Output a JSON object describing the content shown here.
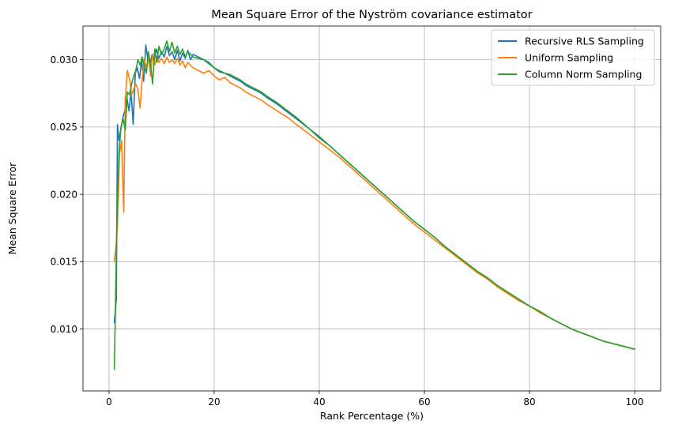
{
  "chart_data": {
    "type": "line",
    "title": "Mean Square Error of the Nyström covariance estimator",
    "xlabel": "Rank Percentage (%)",
    "ylabel": "Mean Square Error",
    "xlim": [
      -4.95,
      104.95
    ],
    "ylim": [
      0.0054,
      0.0325
    ],
    "xticks": [
      0,
      20,
      40,
      60,
      80,
      100
    ],
    "yticks": [
      0.01,
      0.015,
      0.02,
      0.025,
      0.03
    ],
    "xtick_labels": [
      "0",
      "20",
      "40",
      "60",
      "80",
      "100"
    ],
    "ytick_labels": [
      "0.010",
      "0.015",
      "0.020",
      "0.025",
      "0.030"
    ],
    "grid": true,
    "legend_position": "top-right",
    "series": [
      {
        "name": "Recursive RLS Sampling",
        "color": "#1f77b4",
        "points": [
          [
            1,
            0.0105
          ],
          [
            1.4,
            0.0122
          ],
          [
            1.6,
            0.0252
          ],
          [
            1.9,
            0.024
          ],
          [
            2.3,
            0.025
          ],
          [
            2.7,
            0.0258
          ],
          [
            3.0,
            0.0262
          ],
          [
            3.4,
            0.0272
          ],
          [
            3.8,
            0.0262
          ],
          [
            4.2,
            0.0276
          ],
          [
            4.6,
            0.0252
          ],
          [
            5.0,
            0.029
          ],
          [
            5.4,
            0.0294
          ],
          [
            5.8,
            0.0286
          ],
          [
            6.2,
            0.03
          ],
          [
            6.6,
            0.0284
          ],
          [
            7.0,
            0.0311
          ],
          [
            7.4,
            0.03
          ],
          [
            7.8,
            0.0296
          ],
          [
            8.2,
            0.0304
          ],
          [
            8.6,
            0.03
          ],
          [
            9.0,
            0.0308
          ],
          [
            9.5,
            0.0301
          ],
          [
            10,
            0.0306
          ],
          [
            10.5,
            0.0302
          ],
          [
            11,
            0.031
          ],
          [
            11.5,
            0.0303
          ],
          [
            12,
            0.0306
          ],
          [
            12.5,
            0.03
          ],
          [
            13,
            0.0307
          ],
          [
            13.5,
            0.0299
          ],
          [
            14,
            0.0305
          ],
          [
            14.5,
            0.0301
          ],
          [
            15,
            0.0307
          ],
          [
            15.5,
            0.03
          ],
          [
            16,
            0.0304
          ],
          [
            17,
            0.0302
          ],
          [
            18,
            0.03
          ],
          [
            19,
            0.0298
          ],
          [
            20,
            0.0294
          ],
          [
            21,
            0.0291
          ],
          [
            22,
            0.029
          ],
          [
            23,
            0.0288
          ],
          [
            24,
            0.0286
          ],
          [
            25,
            0.0284
          ],
          [
            26,
            0.0281
          ],
          [
            27,
            0.0279
          ],
          [
            28,
            0.0277
          ],
          [
            29,
            0.0275
          ],
          [
            30,
            0.0272
          ],
          [
            32,
            0.0267
          ],
          [
            34,
            0.0261
          ],
          [
            36,
            0.0255
          ],
          [
            38,
            0.0249
          ],
          [
            40,
            0.0242
          ],
          [
            42,
            0.0236
          ],
          [
            44,
            0.0229
          ],
          [
            46,
            0.0222
          ],
          [
            48,
            0.0215
          ],
          [
            50,
            0.0208
          ],
          [
            52,
            0.0201
          ],
          [
            54,
            0.0194
          ],
          [
            56,
            0.0187
          ],
          [
            58,
            0.018
          ],
          [
            60,
            0.0174
          ],
          [
            62,
            0.0168
          ],
          [
            64,
            0.0161
          ],
          [
            66,
            0.0155
          ],
          [
            68,
            0.0149
          ],
          [
            70,
            0.0143
          ],
          [
            72,
            0.0138
          ],
          [
            74,
            0.0132
          ],
          [
            76,
            0.0127
          ],
          [
            78,
            0.0122
          ],
          [
            80,
            0.0117
          ],
          [
            82,
            0.0113
          ],
          [
            84,
            0.0108
          ],
          [
            86,
            0.0104
          ],
          [
            88,
            0.01
          ],
          [
            90,
            0.0097
          ],
          [
            92,
            0.0094
          ],
          [
            94,
            0.0091
          ],
          [
            96,
            0.0089
          ],
          [
            98,
            0.0087
          ],
          [
            100,
            0.0085
          ]
        ]
      },
      {
        "name": "Uniform Sampling",
        "color": "#ff7f0e",
        "points": [
          [
            1,
            0.015
          ],
          [
            1.3,
            0.016
          ],
          [
            1.6,
            0.0175
          ],
          [
            2.0,
            0.023
          ],
          [
            2.4,
            0.024
          ],
          [
            2.8,
            0.0187
          ],
          [
            3.1,
            0.027
          ],
          [
            3.5,
            0.0292
          ],
          [
            3.9,
            0.0286
          ],
          [
            4.3,
            0.0274
          ],
          [
            4.7,
            0.0278
          ],
          [
            5.1,
            0.0282
          ],
          [
            5.5,
            0.0278
          ],
          [
            5.9,
            0.0264
          ],
          [
            6.3,
            0.0285
          ],
          [
            6.7,
            0.03
          ],
          [
            7.1,
            0.0294
          ],
          [
            7.5,
            0.0302
          ],
          [
            7.9,
            0.0288
          ],
          [
            8.3,
            0.0304
          ],
          [
            8.7,
            0.0296
          ],
          [
            9.1,
            0.0302
          ],
          [
            9.5,
            0.0298
          ],
          [
            10,
            0.0301
          ],
          [
            10.5,
            0.0297
          ],
          [
            11,
            0.0302
          ],
          [
            11.5,
            0.0298
          ],
          [
            12,
            0.03
          ],
          [
            12.5,
            0.0297
          ],
          [
            13,
            0.0301
          ],
          [
            13.5,
            0.0296
          ],
          [
            14,
            0.0299
          ],
          [
            14.5,
            0.0294
          ],
          [
            15,
            0.0298
          ],
          [
            16,
            0.0294
          ],
          [
            17,
            0.0292
          ],
          [
            18,
            0.029
          ],
          [
            19,
            0.0292
          ],
          [
            20,
            0.0288
          ],
          [
            21,
            0.0285
          ],
          [
            22,
            0.0287
          ],
          [
            23,
            0.0283
          ],
          [
            24,
            0.0281
          ],
          [
            25,
            0.0279
          ],
          [
            26,
            0.0276
          ],
          [
            27,
            0.0274
          ],
          [
            28,
            0.0272
          ],
          [
            29,
            0.027
          ],
          [
            30,
            0.0267
          ],
          [
            32,
            0.0262
          ],
          [
            34,
            0.0257
          ],
          [
            36,
            0.0251
          ],
          [
            38,
            0.0245
          ],
          [
            40,
            0.0239
          ],
          [
            42,
            0.0233
          ],
          [
            44,
            0.0227
          ],
          [
            46,
            0.022
          ],
          [
            48,
            0.0213
          ],
          [
            50,
            0.0206
          ],
          [
            52,
            0.0199
          ],
          [
            54,
            0.0192
          ],
          [
            56,
            0.0185
          ],
          [
            58,
            0.0178
          ],
          [
            60,
            0.0172
          ],
          [
            62,
            0.0166
          ],
          [
            64,
            0.016
          ],
          [
            66,
            0.0154
          ],
          [
            68,
            0.0148
          ],
          [
            70,
            0.0142
          ],
          [
            72,
            0.0137
          ],
          [
            74,
            0.0131
          ],
          [
            76,
            0.0126
          ],
          [
            78,
            0.0121
          ],
          [
            80,
            0.0117
          ],
          [
            82,
            0.0112
          ],
          [
            84,
            0.0108
          ],
          [
            86,
            0.0104
          ],
          [
            88,
            0.01
          ],
          [
            90,
            0.0097
          ],
          [
            92,
            0.0094
          ],
          [
            94,
            0.0091
          ],
          [
            96,
            0.0089
          ],
          [
            98,
            0.0087
          ],
          [
            100,
            0.0085
          ]
        ]
      },
      {
        "name": "Column Norm Sampling",
        "color": "#2ca02c",
        "points": [
          [
            1,
            0.007
          ],
          [
            1.2,
            0.011
          ],
          [
            1.5,
            0.018
          ],
          [
            1.9,
            0.0232
          ],
          [
            2.3,
            0.025
          ],
          [
            2.7,
            0.0256
          ],
          [
            3.1,
            0.0248
          ],
          [
            3.5,
            0.0276
          ],
          [
            3.9,
            0.0274
          ],
          [
            4.3,
            0.0282
          ],
          [
            4.7,
            0.0288
          ],
          [
            5.1,
            0.0292
          ],
          [
            5.5,
            0.03
          ],
          [
            5.9,
            0.0296
          ],
          [
            6.3,
            0.0302
          ],
          [
            6.7,
            0.0296
          ],
          [
            7.1,
            0.029
          ],
          [
            7.5,
            0.0306
          ],
          [
            7.9,
            0.0296
          ],
          [
            8.3,
            0.0282
          ],
          [
            8.7,
            0.0308
          ],
          [
            9.1,
            0.0298
          ],
          [
            9.5,
            0.031
          ],
          [
            10,
            0.0304
          ],
          [
            10.5,
            0.0308
          ],
          [
            11,
            0.0314
          ],
          [
            11.5,
            0.0306
          ],
          [
            12,
            0.0313
          ],
          [
            12.5,
            0.0305
          ],
          [
            13,
            0.031
          ],
          [
            13.5,
            0.0304
          ],
          [
            14,
            0.0308
          ],
          [
            14.5,
            0.0302
          ],
          [
            15,
            0.0306
          ],
          [
            16,
            0.0302
          ],
          [
            17,
            0.0301
          ],
          [
            18,
            0.03
          ],
          [
            19,
            0.0297
          ],
          [
            20,
            0.0294
          ],
          [
            21,
            0.0292
          ],
          [
            22,
            0.029
          ],
          [
            23,
            0.0289
          ],
          [
            24,
            0.0287
          ],
          [
            25,
            0.0285
          ],
          [
            26,
            0.0282
          ],
          [
            27,
            0.028
          ],
          [
            28,
            0.0278
          ],
          [
            29,
            0.0276
          ],
          [
            30,
            0.0273
          ],
          [
            32,
            0.0268
          ],
          [
            34,
            0.0262
          ],
          [
            36,
            0.0256
          ],
          [
            38,
            0.0249
          ],
          [
            40,
            0.0243
          ],
          [
            42,
            0.0236
          ],
          [
            44,
            0.0229
          ],
          [
            46,
            0.0222
          ],
          [
            48,
            0.0215
          ],
          [
            50,
            0.0208
          ],
          [
            52,
            0.0201
          ],
          [
            54,
            0.0194
          ],
          [
            56,
            0.0187
          ],
          [
            58,
            0.018
          ],
          [
            60,
            0.0174
          ],
          [
            62,
            0.0168
          ],
          [
            64,
            0.0161
          ],
          [
            66,
            0.0155
          ],
          [
            68,
            0.0149
          ],
          [
            70,
            0.0143
          ],
          [
            72,
            0.0138
          ],
          [
            74,
            0.0132
          ],
          [
            76,
            0.0127
          ],
          [
            78,
            0.0122
          ],
          [
            80,
            0.0117
          ],
          [
            82,
            0.0113
          ],
          [
            84,
            0.0108
          ],
          [
            86,
            0.0104
          ],
          [
            88,
            0.01
          ],
          [
            90,
            0.0097
          ],
          [
            92,
            0.0094
          ],
          [
            94,
            0.0091
          ],
          [
            96,
            0.0089
          ],
          [
            98,
            0.0087
          ],
          [
            100,
            0.0085
          ]
        ]
      }
    ]
  }
}
